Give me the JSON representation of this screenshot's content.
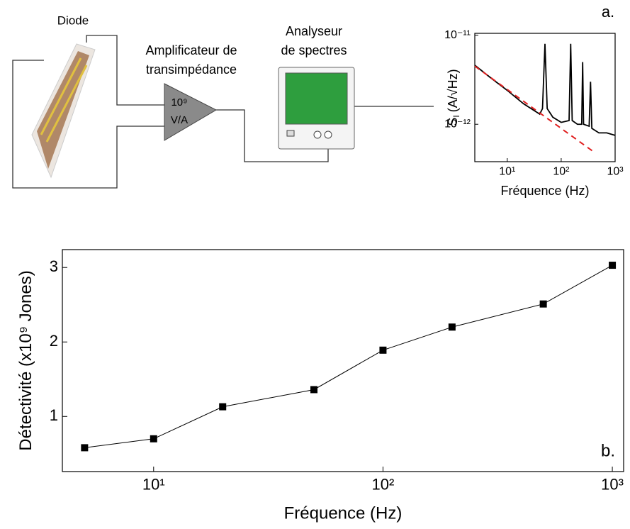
{
  "diagram": {
    "diode_label": "Diode",
    "amplifier_label": [
      "Amplificateur de",
      "transimpédance"
    ],
    "amplifier_gain": [
      "10⁹",
      "V/A"
    ],
    "analyzer_label": [
      "Analyseur",
      "de spectres"
    ],
    "panel_label": "a."
  },
  "chart_data": [
    {
      "type": "line",
      "xlabel": "Fréquence (Hz)",
      "ylabel_symbol": "S",
      "ylabel_subscript": "I",
      "ylabel": "(A/√Hz)",
      "xlog": true,
      "ylog": true,
      "xlim": [
        2.5,
        1000
      ],
      "ylim": [
        3.8e-13,
        1.05e-11
      ],
      "xticks": [
        {
          "value": 10,
          "label": "10¹"
        },
        {
          "value": 100,
          "label": "10²"
        },
        {
          "value": 1000,
          "label": "10³"
        }
      ],
      "yticks": [
        {
          "value": 1e-11,
          "label": "10⁻¹¹"
        },
        {
          "value": 1e-12,
          "label": "10⁻¹²"
        }
      ],
      "series": [
        {
          "color": "#000000",
          "x": [
            2.5,
            5,
            10,
            20,
            40,
            45,
            50,
            55,
            70,
            100,
            140,
            150,
            160,
            200,
            240,
            250,
            260,
            330,
            350,
            370,
            500,
            700,
            1000
          ],
          "values": [
            4.6e-12,
            3.3e-12,
            2.4e-12,
            1.7e-12,
            1.3e-12,
            1.5e-12,
            8e-12,
            1.5e-12,
            1.2e-12,
            1.05e-12,
            1.1e-12,
            8e-12,
            1.1e-12,
            1e-12,
            1e-12,
            5e-12,
            1e-12,
            9.5e-13,
            3e-12,
            9e-13,
            8e-13,
            8e-13,
            7.5e-13
          ]
        },
        {
          "color": "#e02020",
          "dash": true,
          "x": [
            2.5,
            420
          ],
          "values": [
            4.5e-12,
            4.8e-13
          ]
        }
      ]
    },
    {
      "type": "line",
      "xlabel": "Fréquence (Hz)",
      "ylabel": "Détectivité (x10⁹ Jones)",
      "annotation": "b.",
      "xlog": true,
      "xlim": [
        4,
        1120
      ],
      "ylim": [
        0.26,
        3.24
      ],
      "xticks": [
        {
          "value": 10,
          "label": "10¹"
        },
        {
          "value": 100,
          "label": "10²"
        },
        {
          "value": 1000,
          "label": "10³"
        }
      ],
      "yticks": [
        1,
        2,
        3
      ],
      "series": [
        {
          "color": "#000000",
          "marker": "square",
          "x": [
            5,
            10,
            20,
            50,
            100,
            200,
            500,
            1000
          ],
          "values": [
            0.58,
            0.7,
            1.13,
            1.36,
            1.89,
            2.2,
            2.51,
            3.03
          ]
        }
      ]
    }
  ]
}
